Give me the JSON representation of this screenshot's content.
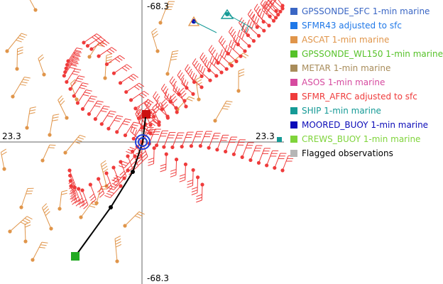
{
  "chart_data": {
    "type": "scatter",
    "axes": {
      "x_tick_labels": [
        "23.3",
        "23.3"
      ],
      "y_tick_labels": [
        "-68.3",
        "-68.3"
      ]
    },
    "legend": [
      {
        "label": "GPSSONDE_SFC 1-min marine",
        "color": "#3a66c4"
      },
      {
        "label": "SFMR43 adjusted to sfc",
        "color": "#1f78e8"
      },
      {
        "label": "ASCAT 1-min marine",
        "color": "#e0954a"
      },
      {
        "label": "GPSSONDE_WL150 1-min marine",
        "color": "#56c229"
      },
      {
        "label": "METAR 1-min marine",
        "color": "#a88c5a"
      },
      {
        "label": "ASOS 1-min marine",
        "color": "#d64a9f"
      },
      {
        "label": "SFMR_AFRC adjusted to sfc",
        "color": "#ef3b3b"
      },
      {
        "label": "SHIP 1-min marine",
        "color": "#159a96"
      },
      {
        "label": "MOORED_BUOY 1-min marine",
        "color": "#0b0bb8"
      },
      {
        "label": "CREWS_BUOY 1-min marine",
        "color": "#7fd43b"
      },
      {
        "label": "Flagged observations",
        "color": "#b5b5b5"
      }
    ],
    "series": [
      {
        "name": "SFMR_AFRC adjusted to sfc",
        "color": "#ef3b3b"
      },
      {
        "name": "ASCAT 1-min marine",
        "color": "#e0954a"
      },
      {
        "name": "SHIP 1-min marine",
        "color": "#159a96"
      },
      {
        "name": "MOORED_BUOY 1-min marine",
        "color": "#0b0bb8"
      },
      {
        "name": "GPSSONDE_WL150 1-min marine",
        "color": "#56c229"
      }
    ],
    "storm_track_color": "#000000",
    "current_center_color": "#1f3fd6",
    "end_marker_color": "#cc1111",
    "start_marker_color": "#22aa22"
  }
}
